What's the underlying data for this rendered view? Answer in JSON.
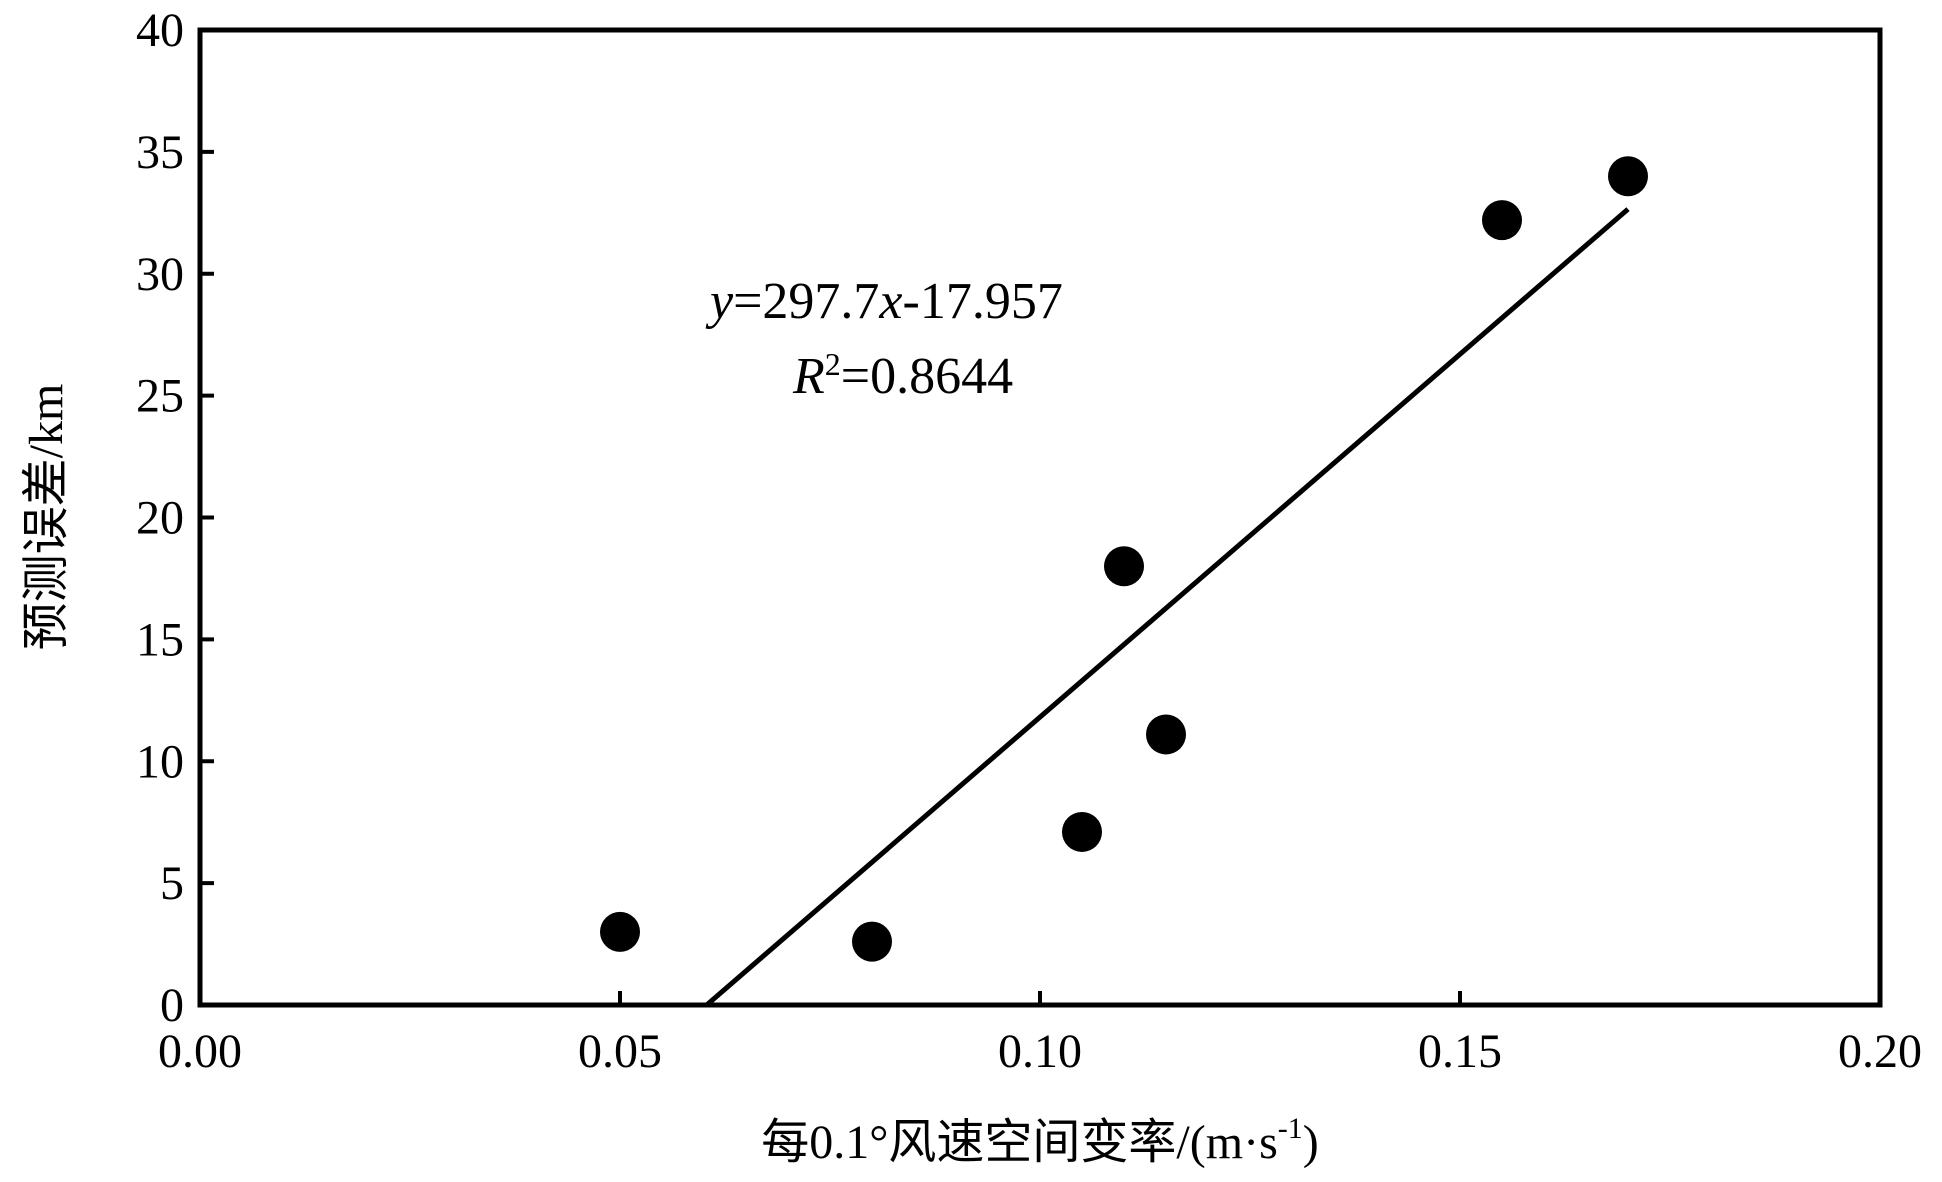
{
  "chart_data": {
    "type": "scatter",
    "xlabel_main": "每0.1°风速空间变率/(m·s",
    "xlabel_sup": "-1",
    "xlabel_tail": ")",
    "ylabel": "预测误差/km",
    "xlim": [
      0.0,
      0.2
    ],
    "ylim": [
      0,
      40
    ],
    "xticks": [
      "0.00",
      "0.05",
      "0.10",
      "0.15",
      "0.20"
    ],
    "xtick_values": [
      0.0,
      0.05,
      0.1,
      0.15,
      0.2
    ],
    "yticks": [
      "0",
      "5",
      "10",
      "15",
      "20",
      "25",
      "30",
      "35",
      "40"
    ],
    "ytick_values": [
      0,
      5,
      10,
      15,
      20,
      25,
      30,
      35,
      40
    ],
    "grid": false,
    "points": [
      {
        "x": 0.05,
        "y": 3.0
      },
      {
        "x": 0.08,
        "y": 2.6
      },
      {
        "x": 0.105,
        "y": 7.1
      },
      {
        "x": 0.11,
        "y": 18.0
      },
      {
        "x": 0.115,
        "y": 11.1
      },
      {
        "x": 0.155,
        "y": 32.2
      },
      {
        "x": 0.17,
        "y": 34.0
      }
    ],
    "fit": {
      "slope": 297.7,
      "intercept": -17.957,
      "x_range": [
        0.0603,
        0.17
      ],
      "equation_var_y": "y",
      "equation_mid": "=297.7",
      "equation_var_x": "x",
      "equation_tail": "-17.957",
      "r2_var": "R",
      "r2_sup": "2",
      "r2_value": "=0.8644"
    }
  }
}
